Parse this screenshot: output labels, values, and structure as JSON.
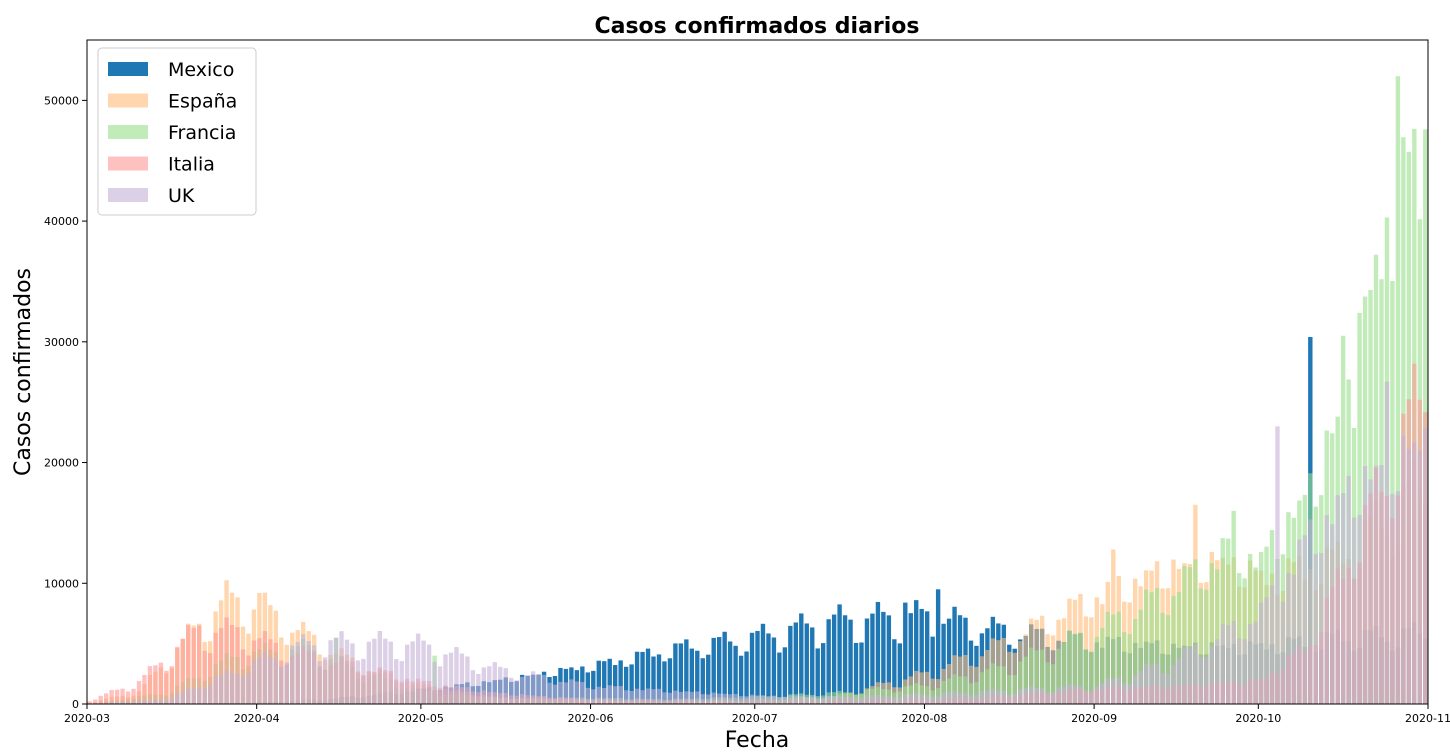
{
  "chart_data": {
    "type": "bar",
    "title": "Casos confirmados diarios",
    "xlabel": "Fecha",
    "ylabel": "Casos confirmados",
    "x_range": [
      "2020-03-01",
      "2020-11-01"
    ],
    "ylim": [
      0,
      55000
    ],
    "grid": false,
    "legend_position": "top-left",
    "x_ticks": [
      "2020-03",
      "2020-04",
      "2020-05",
      "2020-06",
      "2020-07",
      "2020-08",
      "2020-09",
      "2020-10",
      "2020-11"
    ],
    "y_ticks": [
      0,
      10000,
      20000,
      30000,
      40000,
      50000
    ],
    "y_tick_labels": [
      "0",
      "10000",
      "20000",
      "30000",
      "40000",
      "50000"
    ],
    "legend": [
      "Mexico",
      "España",
      "Francia",
      "Italia",
      "UK"
    ],
    "dates_note": "one bar per day from 2020-03-01 to 2020-10-31; values are approximate readings",
    "series": [
      {
        "name": "Mexico",
        "color": "#1f77b4",
        "alpha": 1.0,
        "anchors": [
          [
            "2020-03-01",
            0
          ],
          [
            "2020-03-20",
            30
          ],
          [
            "2020-04-01",
            130
          ],
          [
            "2020-04-15",
            450
          ],
          [
            "2020-05-01",
            1200
          ],
          [
            "2020-05-15",
            2000
          ],
          [
            "2020-06-01",
            3200
          ],
          [
            "2020-06-15",
            4500
          ],
          [
            "2020-07-01",
            5500
          ],
          [
            "2020-07-15",
            6800
          ],
          [
            "2020-08-01",
            7200
          ],
          [
            "2020-08-15",
            6000
          ],
          [
            "2020-09-01",
            5200
          ],
          [
            "2020-09-15",
            4800
          ],
          [
            "2020-10-01",
            4800
          ],
          [
            "2020-10-15",
            5500
          ],
          [
            "2020-10-31",
            5800
          ]
        ],
        "spikes": [
          [
            "2020-07-28",
            8400
          ],
          [
            "2020-08-03",
            9500
          ],
          [
            "2020-10-10",
            30400
          ]
        ]
      },
      {
        "name": "España",
        "color": "#ffbb78",
        "alpha": 0.6,
        "anchors": [
          [
            "2020-03-01",
            100
          ],
          [
            "2020-03-10",
            1000
          ],
          [
            "2020-03-20",
            6000
          ],
          [
            "2020-03-26",
            8500
          ],
          [
            "2020-04-01",
            8000
          ],
          [
            "2020-04-10",
            5500
          ],
          [
            "2020-04-20",
            3000
          ],
          [
            "2020-05-01",
            1500
          ],
          [
            "2020-05-15",
            500
          ],
          [
            "2020-06-01",
            300
          ],
          [
            "2020-06-15",
            250
          ],
          [
            "2020-07-01",
            350
          ],
          [
            "2020-07-15",
            600
          ],
          [
            "2020-08-01",
            2500
          ],
          [
            "2020-08-15",
            5000
          ],
          [
            "2020-09-01",
            9000
          ],
          [
            "2020-09-15",
            11500
          ],
          [
            "2020-09-25",
            12000
          ],
          [
            "2020-10-01",
            10500
          ],
          [
            "2020-10-15",
            12000
          ],
          [
            "2020-10-31",
            18000
          ]
        ],
        "spikes": [
          [
            "2020-04-01",
            9200
          ],
          [
            "2020-09-04",
            12800
          ],
          [
            "2020-09-19",
            16500
          ]
        ]
      },
      {
        "name": "Francia",
        "color": "#98df8a",
        "alpha": 0.6,
        "anchors": [
          [
            "2020-03-01",
            20
          ],
          [
            "2020-03-15",
            900
          ],
          [
            "2020-03-28",
            4000
          ],
          [
            "2020-04-10",
            4500
          ],
          [
            "2020-04-20",
            2500
          ],
          [
            "2020-05-01",
            1000
          ],
          [
            "2020-05-15",
            500
          ],
          [
            "2020-06-01",
            500
          ],
          [
            "2020-06-15",
            400
          ],
          [
            "2020-07-01",
            600
          ],
          [
            "2020-07-15",
            900
          ],
          [
            "2020-08-01",
            1500
          ],
          [
            "2020-08-15",
            3000
          ],
          [
            "2020-09-01",
            6000
          ],
          [
            "2020-09-15",
            9500
          ],
          [
            "2020-09-25",
            13000
          ],
          [
            "2020-10-01",
            12000
          ],
          [
            "2020-10-10",
            18000
          ],
          [
            "2020-10-18",
            27000
          ],
          [
            "2020-10-25",
            42000
          ],
          [
            "2020-10-31",
            45000
          ]
        ],
        "spikes": [
          [
            "2020-04-15",
            5500
          ],
          [
            "2020-05-03",
            4000
          ],
          [
            "2020-09-26",
            16000
          ],
          [
            "2020-10-16",
            30500
          ],
          [
            "2020-10-19",
            32400
          ],
          [
            "2020-10-26",
            52000
          ],
          [
            "2020-10-31",
            47600
          ]
        ]
      },
      {
        "name": "Italia",
        "color": "#ff9896",
        "alpha": 0.6,
        "anchors": [
          [
            "2020-03-01",
            300
          ],
          [
            "2020-03-10",
            1800
          ],
          [
            "2020-03-20",
            5800
          ],
          [
            "2020-03-28",
            6000
          ],
          [
            "2020-04-05",
            4500
          ],
          [
            "2020-04-15",
            3500
          ],
          [
            "2020-04-25",
            2500
          ],
          [
            "2020-05-01",
            1800
          ],
          [
            "2020-05-15",
            900
          ],
          [
            "2020-06-01",
            350
          ],
          [
            "2020-06-15",
            300
          ],
          [
            "2020-07-01",
            200
          ],
          [
            "2020-07-15",
            200
          ],
          [
            "2020-08-01",
            350
          ],
          [
            "2020-08-15",
            600
          ],
          [
            "2020-09-01",
            1300
          ],
          [
            "2020-09-15",
            1500
          ],
          [
            "2020-10-01",
            2000
          ],
          [
            "2020-10-10",
            5000
          ],
          [
            "2020-10-20",
            15000
          ],
          [
            "2020-10-31",
            26000
          ]
        ],
        "spikes": [
          [
            "2020-03-21",
            6500
          ]
        ]
      },
      {
        "name": "UK",
        "color": "#c5b0d5",
        "alpha": 0.6,
        "anchors": [
          [
            "2020-03-01",
            30
          ],
          [
            "2020-03-15",
            400
          ],
          [
            "2020-04-01",
            3500
          ],
          [
            "2020-04-10",
            5000
          ],
          [
            "2020-04-25",
            5000
          ],
          [
            "2020-05-01",
            4800
          ],
          [
            "2020-05-08",
            3800
          ],
          [
            "2020-05-15",
            2800
          ],
          [
            "2020-06-01",
            1500
          ],
          [
            "2020-06-15",
            1100
          ],
          [
            "2020-07-01",
            700
          ],
          [
            "2020-07-15",
            600
          ],
          [
            "2020-08-01",
            800
          ],
          [
            "2020-08-15",
            1100
          ],
          [
            "2020-09-01",
            1500
          ],
          [
            "2020-09-15",
            3500
          ],
          [
            "2020-09-25",
            6000
          ],
          [
            "2020-10-01",
            7500
          ],
          [
            "2020-10-10",
            14000
          ],
          [
            "2020-10-20",
            19000
          ],
          [
            "2020-10-31",
            22000
          ]
        ],
        "spikes": [
          [
            "2020-10-04",
            23000
          ],
          [
            "2020-10-24",
            26700
          ]
        ]
      }
    ]
  }
}
